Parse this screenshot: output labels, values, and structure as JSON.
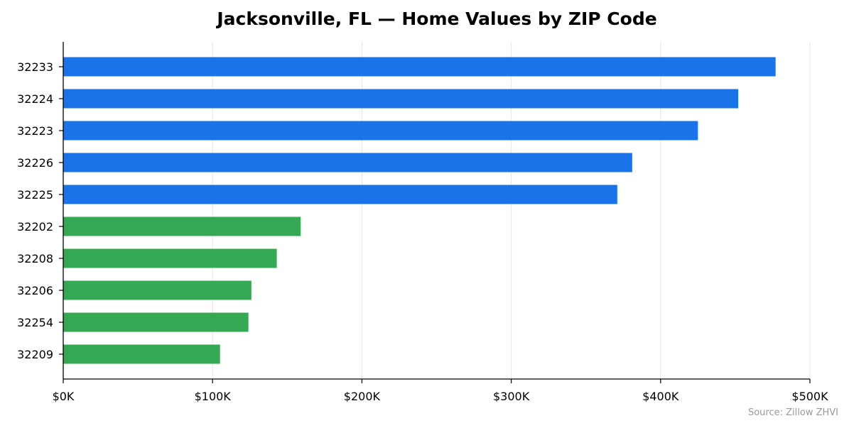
{
  "chart_data": {
    "type": "bar",
    "orientation": "horizontal",
    "title": "Jacksonville, FL — Home Values by ZIP Code",
    "xlabel": "",
    "ylabel": "",
    "xlim": [
      0,
      500000
    ],
    "x_ticks": [
      {
        "value": 0,
        "label": "$0K"
      },
      {
        "value": 100000,
        "label": "$100K"
      },
      {
        "value": 200000,
        "label": "$200K"
      },
      {
        "value": 300000,
        "label": "$300K"
      },
      {
        "value": 400000,
        "label": "$400K"
      },
      {
        "value": 500000,
        "label": "$500K"
      }
    ],
    "grid": "vertical",
    "categories": [
      "32233",
      "32224",
      "32223",
      "32226",
      "32225",
      "32202",
      "32208",
      "32206",
      "32254",
      "32209"
    ],
    "values": [
      477000,
      452000,
      425000,
      381000,
      371000,
      159000,
      143000,
      126000,
      124000,
      105000
    ],
    "bar_colors": [
      "#1a73e8",
      "#1a73e8",
      "#1a73e8",
      "#1a73e8",
      "#1a73e8",
      "#34a853",
      "#34a853",
      "#34a853",
      "#34a853",
      "#34a853"
    ],
    "source_note": "Source: Zillow ZHVI"
  }
}
